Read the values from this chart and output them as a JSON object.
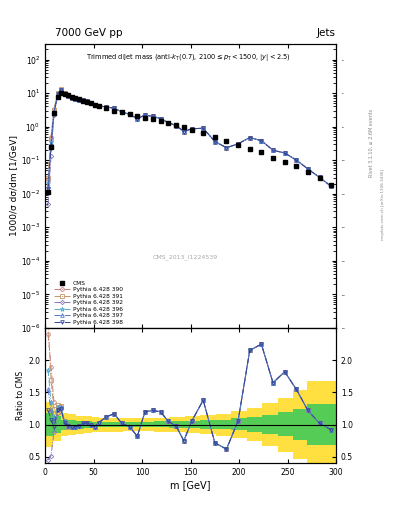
{
  "title_top": "7000 GeV pp",
  "title_right": "Jets",
  "watermark": "CMS_2013_I1224539",
  "right_label": "Rivet 3.1.10, ≥ 2.6M events",
  "right_label2": "mcplots.cern.ch [arXiv:1306.3436]",
  "xlabel": "m [GeV]",
  "ylabel_main": "1000/σ dσ/dm [1/GeV]",
  "ylabel_ratio": "Ratio to CMS",
  "xlim": [
    0,
    300
  ],
  "ylim_main": [
    1e-06,
    300.0
  ],
  "ylim_ratio": [
    0.4,
    2.5
  ],
  "cms_x": [
    3,
    6,
    9,
    13,
    16,
    20,
    24,
    28,
    31,
    35,
    39,
    43,
    47,
    51,
    55,
    63,
    71,
    79,
    87,
    95,
    103,
    111,
    119,
    127,
    135,
    143,
    151,
    163,
    175,
    187,
    199,
    211,
    223,
    235,
    247,
    259,
    271,
    283,
    295
  ],
  "cms_y": [
    0.011,
    0.25,
    2.5,
    7.5,
    10,
    9.5,
    8.5,
    7.5,
    7.0,
    6.5,
    6.0,
    5.5,
    5.0,
    4.5,
    4.0,
    3.5,
    3.0,
    2.7,
    2.4,
    2.1,
    1.85,
    1.65,
    1.45,
    1.25,
    1.1,
    0.95,
    0.82,
    0.65,
    0.5,
    0.38,
    0.29,
    0.22,
    0.17,
    0.12,
    0.09,
    0.065,
    0.045,
    0.03,
    0.018
  ],
  "mc_colors": [
    "#c97b7b",
    "#c8956b",
    "#8877bb",
    "#55aacc",
    "#5577cc",
    "#334499"
  ],
  "mc_markers": [
    "o",
    "s",
    "D",
    "*",
    "^",
    "v"
  ],
  "mc_marker_sizes": [
    3.5,
    3.5,
    3.0,
    4.5,
    3.5,
    3.5
  ],
  "mc_labels": [
    "Pythia 6.428 390",
    "Pythia 6.428 391",
    "Pythia 6.428 392",
    "Pythia 6.428 396",
    "Pythia 6.428 397",
    "Pythia 6.428 398"
  ],
  "mc_linestyles": [
    "-.",
    "-.",
    "-.",
    "-.",
    "-.",
    "-."
  ],
  "green_band_x": [
    0,
    8,
    16,
    24,
    32,
    40,
    48,
    56,
    64,
    80,
    96,
    112,
    128,
    144,
    160,
    176,
    192,
    208,
    224,
    240,
    256,
    270,
    300
  ],
  "green_band_low": [
    0.82,
    0.87,
    0.92,
    0.93,
    0.94,
    0.95,
    0.96,
    0.96,
    0.96,
    0.96,
    0.96,
    0.96,
    0.95,
    0.95,
    0.94,
    0.93,
    0.91,
    0.89,
    0.86,
    0.82,
    0.76,
    0.68,
    0.68
  ],
  "green_band_high": [
    1.18,
    1.13,
    1.08,
    1.07,
    1.06,
    1.05,
    1.04,
    1.04,
    1.04,
    1.04,
    1.04,
    1.05,
    1.05,
    1.06,
    1.07,
    1.08,
    1.1,
    1.12,
    1.15,
    1.19,
    1.25,
    1.32,
    1.32
  ],
  "yellow_band_x": [
    0,
    8,
    16,
    24,
    32,
    40,
    48,
    56,
    64,
    80,
    96,
    112,
    128,
    144,
    160,
    176,
    192,
    208,
    224,
    240,
    256,
    270,
    300
  ],
  "yellow_band_low": [
    0.65,
    0.75,
    0.82,
    0.84,
    0.86,
    0.87,
    0.88,
    0.89,
    0.89,
    0.9,
    0.9,
    0.89,
    0.88,
    0.87,
    0.85,
    0.83,
    0.79,
    0.74,
    0.67,
    0.58,
    0.46,
    0.32,
    0.32
  ],
  "yellow_band_high": [
    1.35,
    1.25,
    1.18,
    1.16,
    1.14,
    1.13,
    1.12,
    1.11,
    1.11,
    1.1,
    1.1,
    1.11,
    1.12,
    1.13,
    1.15,
    1.17,
    1.21,
    1.26,
    1.33,
    1.42,
    1.54,
    1.68,
    1.68
  ],
  "ratio_x": [
    3,
    6,
    9,
    13,
    16,
    20,
    24,
    28,
    31,
    35,
    39,
    43,
    47,
    51,
    55,
    63,
    71,
    79,
    87,
    95,
    103,
    111,
    119,
    127,
    135,
    143,
    151,
    163,
    175,
    187,
    199,
    211,
    223,
    235,
    247,
    259,
    271,
    283,
    295
  ],
  "ratio_390": [
    2.4,
    1.9,
    1.35,
    1.28,
    1.27,
    1.05,
    0.98,
    0.97,
    0.97,
    0.98,
    1.02,
    1.03,
    0.99,
    0.97,
    1.03,
    1.12,
    1.17,
    1.02,
    0.97,
    0.82,
    1.2,
    1.22,
    1.2,
    1.05,
    0.98,
    0.75,
    1.05,
    1.38,
    0.72,
    0.62,
    1.06,
    2.15,
    2.25,
    1.65,
    1.82,
    1.55,
    1.22,
    1.02,
    0.92
  ],
  "ratio_391": [
    2.6,
    1.7,
    1.25,
    1.3,
    1.29,
    1.05,
    0.97,
    0.97,
    0.97,
    0.98,
    1.02,
    1.03,
    0.99,
    0.97,
    1.03,
    1.12,
    1.17,
    1.02,
    0.97,
    0.82,
    1.2,
    1.22,
    1.2,
    1.05,
    0.98,
    0.75,
    1.05,
    1.38,
    0.72,
    0.62,
    1.06,
    2.15,
    2.25,
    1.65,
    1.82,
    1.55,
    1.22,
    1.02,
    0.92
  ],
  "ratio_392": [
    0.45,
    0.52,
    0.88,
    1.18,
    1.24,
    1.02,
    0.99,
    0.97,
    0.97,
    0.98,
    1.02,
    1.03,
    0.99,
    0.97,
    1.03,
    1.12,
    1.17,
    1.02,
    0.97,
    0.82,
    1.2,
    1.22,
    1.2,
    1.05,
    0.98,
    0.75,
    1.05,
    1.38,
    0.72,
    0.62,
    1.06,
    2.15,
    2.25,
    1.65,
    1.82,
    1.55,
    1.22,
    1.02,
    0.92
  ],
  "ratio_396": [
    1.85,
    1.35,
    1.12,
    1.27,
    1.27,
    1.05,
    0.98,
    0.97,
    0.97,
    0.98,
    1.02,
    1.03,
    0.99,
    0.97,
    1.03,
    1.12,
    1.17,
    1.02,
    0.97,
    0.82,
    1.2,
    1.22,
    1.2,
    1.05,
    0.98,
    0.75,
    1.05,
    1.38,
    0.72,
    0.62,
    1.06,
    2.15,
    2.25,
    1.65,
    1.82,
    1.55,
    1.22,
    1.02,
    0.92
  ],
  "ratio_397": [
    1.55,
    1.22,
    1.06,
    1.25,
    1.27,
    1.05,
    0.98,
    0.97,
    0.97,
    0.98,
    1.02,
    1.03,
    0.99,
    0.97,
    1.03,
    1.12,
    1.17,
    1.02,
    0.97,
    0.82,
    1.2,
    1.22,
    1.2,
    1.05,
    0.98,
    0.75,
    1.05,
    1.38,
    0.72,
    0.62,
    1.06,
    2.15,
    2.25,
    1.65,
    1.82,
    1.55,
    1.22,
    1.02,
    0.92
  ],
  "ratio_398": [
    1.22,
    1.08,
    0.97,
    1.22,
    1.25,
    1.02,
    0.98,
    0.97,
    0.97,
    0.98,
    1.02,
    1.03,
    0.99,
    0.97,
    1.03,
    1.12,
    1.17,
    1.02,
    0.97,
    0.82,
    1.2,
    1.22,
    1.2,
    1.05,
    0.98,
    0.75,
    1.05,
    1.38,
    0.72,
    0.62,
    1.06,
    2.15,
    2.25,
    1.65,
    1.82,
    1.55,
    1.22,
    1.02,
    0.92
  ]
}
